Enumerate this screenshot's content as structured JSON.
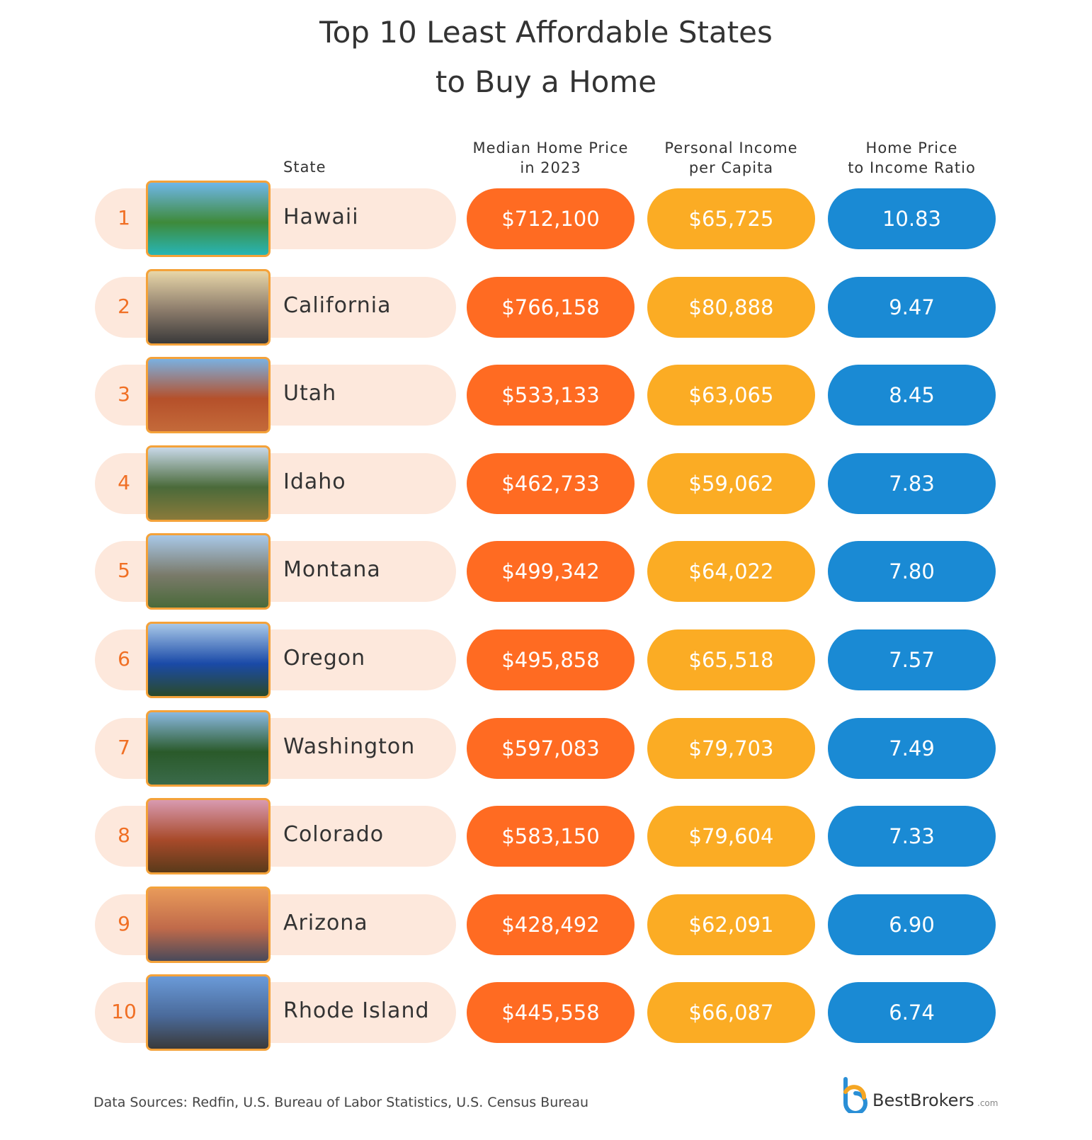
{
  "header": {
    "title": [
      "Top 10 Least Affordable States",
      "to Buy a Home"
    ]
  },
  "table": {
    "columns": [
      [
        "State"
      ],
      [
        "Median Home Price",
        "in 2023"
      ],
      [
        "Personal Income",
        "per Capita"
      ],
      [
        "Home Price",
        "to Income Ratio"
      ]
    ],
    "rows": [
      [
        "1",
        "Hawaii",
        "$712,100",
        "$65,725",
        "10.83"
      ],
      [
        "2",
        "California",
        "$766,158",
        "$80,888",
        "9.47"
      ],
      [
        "3",
        "Utah",
        "$533,133",
        "$63,065",
        "8.45"
      ],
      [
        "4",
        "Idaho",
        "$462,733",
        "$59,062",
        "7.83"
      ],
      [
        "5",
        "Montana",
        "$499,342",
        "$64,022",
        "7.80"
      ],
      [
        "6",
        "Oregon",
        "$495,858",
        "$65,518",
        "7.57"
      ],
      [
        "7",
        "Washington",
        "$597,083",
        "$79,703",
        "7.49"
      ],
      [
        "8",
        "Colorado",
        "$583,150",
        "$79,604",
        "7.33"
      ],
      [
        "9",
        "Arizona",
        "$428,492",
        "$62,091",
        "6.90"
      ],
      [
        "10",
        "Rhode Island",
        "$445,558",
        "$66,087",
        "6.74"
      ]
    ]
  },
  "footer": {
    "sources": "Data Sources: Redfin, U.S. Bureau of Labor Statistics, U.S. Census Bureau",
    "logo": "BestBrokers",
    "logo_suffix": ".com"
  }
}
